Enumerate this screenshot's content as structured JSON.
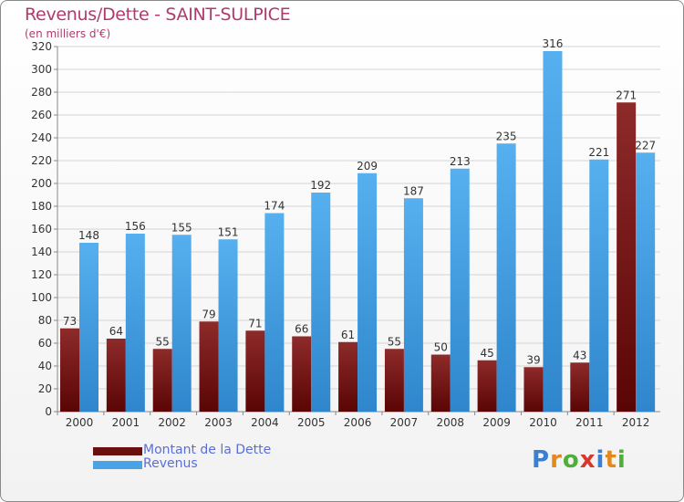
{
  "chart_data": {
    "type": "bar",
    "title": "Revenus/Dette - SAINT-SULPICE",
    "subtitle": "(en milliers d'€)",
    "categories": [
      "2000",
      "2001",
      "2002",
      "2003",
      "2004",
      "2005",
      "2006",
      "2007",
      "2008",
      "2009",
      "2010",
      "2011",
      "2012"
    ],
    "series": [
      {
        "name": "Montant de la Dette",
        "color": "#7a1a1a",
        "values": [
          73,
          64,
          55,
          79,
          71,
          66,
          61,
          55,
          50,
          45,
          39,
          43,
          271
        ]
      },
      {
        "name": "Revenus",
        "color": "#4aa3e6",
        "values": [
          148,
          156,
          155,
          151,
          174,
          192,
          209,
          187,
          213,
          235,
          316,
          221,
          227
        ]
      }
    ],
    "ylim": [
      0,
      320
    ],
    "yticks": [
      0,
      20,
      40,
      60,
      80,
      100,
      120,
      140,
      160,
      180,
      200,
      220,
      240,
      260,
      280,
      300,
      320
    ],
    "grid": true,
    "legend_position": "bottom-left"
  },
  "logo": {
    "text": "Proxiti",
    "letters": [
      "P",
      "r",
      "o",
      "x",
      "i",
      "t",
      "i"
    ],
    "colors": [
      "#3a7fd0",
      "#e08a1e",
      "#4fae3a",
      "#d8372a",
      "#3a7fd0",
      "#e08a1e",
      "#4fae3a"
    ]
  }
}
